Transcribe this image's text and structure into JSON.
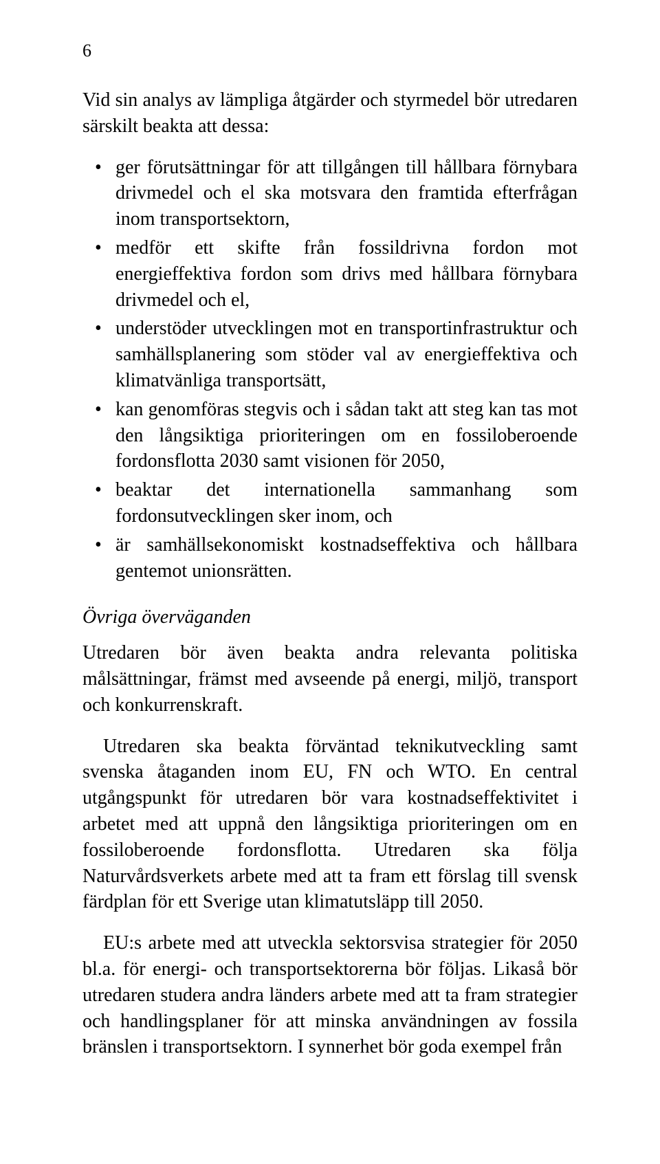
{
  "page_number": "6",
  "intro_paragraph": "Vid sin analys av lämpliga åtgärder och styrmedel bör utredaren särskilt beakta att dessa:",
  "bullets": [
    "ger förutsättningar för att tillgången till hållbara förnybara drivmedel och el ska motsvara den framtida efterfrågan inom transportsektorn,",
    "medför ett skifte från fossildrivna fordon mot energieffektiva fordon som drivs med hållbara förnybara drivmedel och el,",
    "understöder utvecklingen mot en transportinfrastruktur och samhällsplanering som stöder val av energieffektiva och klimatvänliga transportsätt,",
    "kan genomföras stegvis och i sådan takt att steg kan tas mot den långsiktiga prioriteringen om en fossiloberoende fordonsflotta 2030 samt visionen för 2050,",
    "beaktar det internationella sammanhang som fordonsutvecklingen sker inom, och",
    "är samhällsekonomiskt kostnadseffektiva och hållbara gentemot unionsrätten."
  ],
  "subhead": "Övriga överväganden",
  "body_paragraphs": [
    "Utredaren bör även beakta andra relevanta politiska målsättningar, främst med avseende på energi, miljö, transport och konkurrenskraft.",
    "Utredaren ska beakta förväntad teknikutveckling samt svenska åtaganden inom EU, FN och WTO. En central utgångspunkt för utredaren bör vara kostnadseffektivitet i arbetet med att uppnå den långsiktiga prioriteringen om en fossiloberoende fordonsflotta. Utredaren ska följa Naturvårdsverkets arbete med att ta fram ett förslag till svensk färdplan för ett Sverige utan klimatutsläpp till 2050.",
    "EU:s arbete med att utveckla sektorsvisa strategier för 2050 bl.a. för energi- och transportsektorerna bör följas. Likaså bör utredaren studera andra länders arbete med att ta fram strategier och handlingsplaner för att minska användningen av fossila bränslen i transportsektorn. I synnerhet bör goda exempel från"
  ],
  "colors": {
    "text": "#000000",
    "background": "#ffffff"
  },
  "typography": {
    "base_fontsize_pt": 21,
    "font_family": "Times New Roman, serif",
    "line_height": 1.35
  }
}
